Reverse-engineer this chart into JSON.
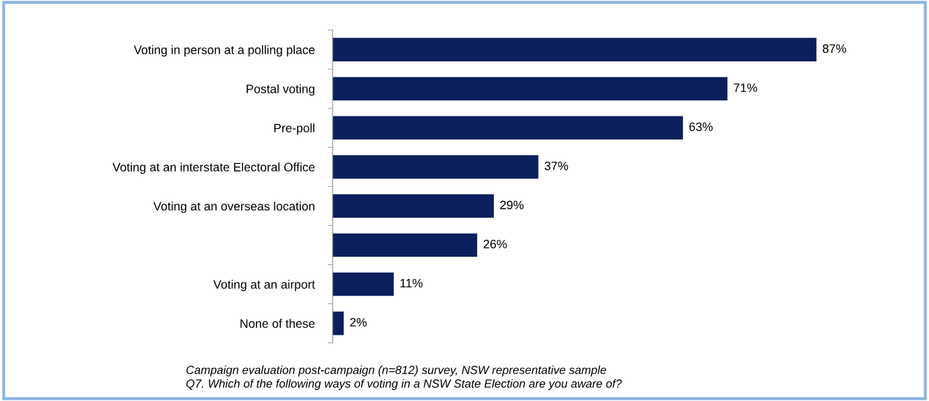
{
  "chart_data": {
    "type": "bar",
    "orientation": "horizontal",
    "categories": [
      "Voting in person at a polling place",
      "Postal voting",
      "Pre-poll",
      "Voting at an interstate Electoral Office",
      "Voting at an overseas location",
      null,
      "Voting at an airport",
      "None of these"
    ],
    "values": [
      87,
      71,
      63,
      37,
      29,
      26,
      11,
      2
    ],
    "value_labels": [
      "87%",
      "71%",
      "63%",
      "37%",
      "29%",
      "26%",
      "11%",
      "2%"
    ],
    "color": "#0b1f5c",
    "grid": false,
    "legend": false,
    "annotations": [
      "Campaign evaluation post-campaign (n=812) survey, NSW representative sample",
      "Q7. Which of the following ways of voting in a NSW State Election are you aware of?"
    ]
  }
}
